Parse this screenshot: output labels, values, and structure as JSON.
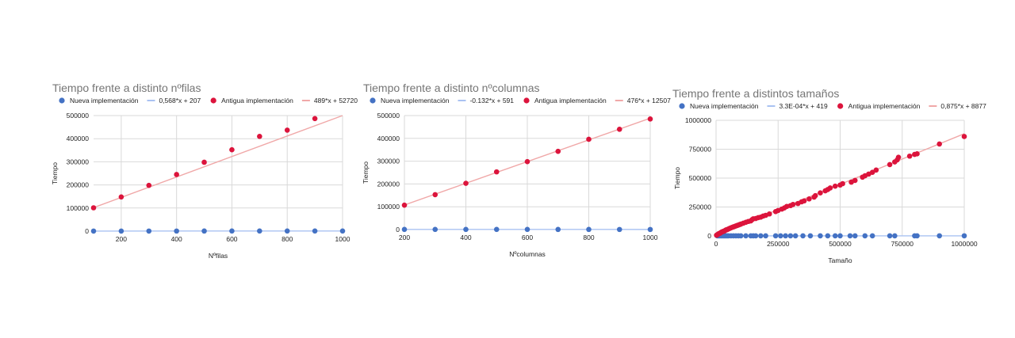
{
  "colors": {
    "nueva": "#4472C4",
    "antigua": "#DC143C",
    "nueva_trend": "#A9C2F2",
    "antigua_trend": "#F0A8A8",
    "grid": "#D9D9D9",
    "title": "#757575"
  },
  "chart_data": [
    {
      "type": "scatter",
      "title": "Tiempo frente a distinto nºfilas",
      "xlabel": "Nºfilas",
      "ylabel": "Tiempo",
      "xlim": [
        100,
        1000
      ],
      "ylim": [
        0,
        500000
      ],
      "xticks": [
        200,
        400,
        600,
        800,
        1000
      ],
      "yticks": [
        0,
        100000,
        200000,
        300000,
        400000,
        500000
      ],
      "ytick_labels": [
        "0",
        "100000",
        "200000",
        "300000",
        "400000",
        "500000"
      ],
      "grid": true,
      "legend_position": "top",
      "legend": [
        "Nueva implementación",
        "0,568*x + 207",
        "Antigua implementación",
        "489*x + 52720"
      ],
      "series": [
        {
          "name": "Nueva implementación",
          "kind": "points",
          "color_key": "nueva",
          "x": [
            100,
            200,
            300,
            400,
            500,
            600,
            700,
            800,
            900,
            1000
          ],
          "y": [
            260,
            320,
            380,
            430,
            490,
            550,
            610,
            660,
            720,
            780
          ]
        },
        {
          "name": "0,568*x + 207",
          "kind": "trendline",
          "color_key": "nueva_trend",
          "slope": 0.568,
          "intercept": 207
        },
        {
          "name": "Antigua implementación",
          "kind": "points",
          "color_key": "antigua",
          "x": [
            100,
            200,
            300,
            400,
            500,
            600,
            700,
            800,
            900
          ],
          "y": [
            101000,
            148000,
            198000,
            245000,
            298000,
            352000,
            410000,
            437000,
            487000
          ]
        },
        {
          "name": "489*x + 52720",
          "kind": "trendline",
          "color_key": "antigua_trend",
          "slope": 489,
          "intercept": 52720
        }
      ]
    },
    {
      "type": "scatter",
      "title": "Tiempo frente a distinto nºcolumnas",
      "xlabel": "Nºcolumnas",
      "ylabel": "Tiempo",
      "xlim": [
        200,
        1000
      ],
      "ylim": [
        0,
        500000
      ],
      "xticks": [
        200,
        400,
        600,
        800,
        1000
      ],
      "yticks": [
        0,
        100000,
        200000,
        300000,
        400000,
        500000
      ],
      "ytick_labels": [
        "0",
        "100000",
        "200000",
        "300000",
        "400000",
        "500000"
      ],
      "grid": true,
      "legend_position": "top",
      "legend": [
        "Nueva implementación",
        "-0.132*x + 591",
        "Antigua implementación",
        "476*x + 12507"
      ],
      "series": [
        {
          "name": "Nueva implementación",
          "kind": "points",
          "color_key": "nueva",
          "x": [
            200,
            300,
            400,
            500,
            600,
            700,
            800,
            900,
            1000
          ],
          "y": [
            560,
            550,
            540,
            525,
            510,
            500,
            485,
            470,
            460
          ]
        },
        {
          "name": "-0.132*x + 591",
          "kind": "trendline",
          "color_key": "nueva_trend",
          "slope": -0.132,
          "intercept": 591
        },
        {
          "name": "Antigua implementación",
          "kind": "points",
          "color_key": "antigua",
          "x": [
            200,
            300,
            400,
            500,
            600,
            700,
            800,
            900,
            1000
          ],
          "y": [
            107000,
            153000,
            203000,
            253000,
            298000,
            343000,
            396000,
            440000,
            485000
          ]
        },
        {
          "name": "476*x + 12507",
          "kind": "trendline",
          "color_key": "antigua_trend",
          "slope": 476,
          "intercept": 12507
        }
      ]
    },
    {
      "type": "scatter",
      "title": "Tiempo frente a distintos tamaños",
      "xlabel": "Tamaño",
      "ylabel": "Tiempo",
      "xlim": [
        0,
        1000000
      ],
      "ylim": [
        0,
        1000000
      ],
      "xticks": [
        0,
        250000,
        500000,
        750000,
        1000000
      ],
      "yticks": [
        0,
        250000,
        500000,
        750000,
        1000000
      ],
      "ytick_labels": [
        "0",
        "250000",
        "500000",
        "750000",
        "1000000"
      ],
      "grid": true,
      "legend_position": "top",
      "legend": [
        "Nueva implementación",
        "3.3E-04*x + 419",
        "Antigua implementación",
        "0,875*x + 8877"
      ],
      "series": [
        {
          "name": "Nueva implementación",
          "kind": "points",
          "color_key": "nueva",
          "x": [
            5000,
            10000,
            15000,
            20000,
            25000,
            30000,
            35000,
            40000,
            45000,
            50000,
            60000,
            70000,
            80000,
            90000,
            100000,
            120000,
            140000,
            150000,
            160000,
            180000,
            200000,
            240000,
            260000,
            280000,
            300000,
            320000,
            350000,
            380000,
            420000,
            450000,
            480000,
            500000,
            540000,
            560000,
            600000,
            630000,
            700000,
            720000,
            800000,
            810000,
            900000,
            1000000
          ],
          "y": [
            420,
            422,
            424,
            426,
            428,
            430,
            431,
            432,
            434,
            436,
            439,
            442,
            445,
            449,
            452,
            459,
            465,
            469,
            472,
            478,
            485,
            498,
            505,
            511,
            518,
            525,
            535,
            544,
            558,
            568,
            577,
            584,
            597,
            604,
            617,
            627,
            650,
            657,
            683,
            686,
            716,
            749
          ]
        },
        {
          "name": "3.3E-04*x + 419",
          "kind": "trendline",
          "color_key": "nueva_trend",
          "slope": 0.00033,
          "intercept": 419
        },
        {
          "name": "Antigua implementación",
          "kind": "points",
          "color_key": "antigua",
          "x": [
            2000,
            5000,
            8000,
            10000,
            12000,
            15000,
            18000,
            20000,
            22000,
            25000,
            28000,
            30000,
            33000,
            36000,
            40000,
            44000,
            48000,
            52000,
            56000,
            60000,
            65000,
            70000,
            75000,
            80000,
            85000,
            90000,
            95000,
            100000,
            110000,
            120000,
            130000,
            140000,
            145000,
            150000,
            160000,
            170000,
            180000,
            190000,
            200000,
            215000,
            240000,
            250000,
            265000,
            275000,
            285000,
            300000,
            310000,
            330000,
            345000,
            355000,
            375000,
            395000,
            400000,
            420000,
            440000,
            450000,
            460000,
            480000,
            500000,
            510000,
            545000,
            560000,
            590000,
            600000,
            615000,
            630000,
            645000,
            700000,
            720000,
            730000,
            735000,
            780000,
            800000,
            810000,
            900000,
            1000000
          ],
          "y": [
            6000,
            10000,
            14000,
            18000,
            20000,
            22000,
            26000,
            30000,
            32000,
            36000,
            38000,
            40000,
            42000,
            46000,
            52000,
            54000,
            58000,
            62000,
            66000,
            70000,
            74000,
            78000,
            82000,
            86000,
            90000,
            94000,
            98000,
            102000,
            110000,
            118000,
            125000,
            130000,
            140000,
            148000,
            150000,
            158000,
            162000,
            172000,
            178000,
            190000,
            210000,
            220000,
            232000,
            242000,
            255000,
            262000,
            272000,
            280000,
            295000,
            303000,
            320000,
            335000,
            348000,
            372000,
            390000,
            401000,
            415000,
            430000,
            440000,
            452000,
            465000,
            480000,
            508000,
            520000,
            535000,
            550000,
            570000,
            617000,
            640000,
            658000,
            680000,
            690000,
            705000,
            710000,
            795000,
            860000
          ]
        },
        {
          "name": "0,875*x + 8877",
          "kind": "trendline",
          "color_key": "antigua_trend",
          "slope": 0.875,
          "intercept": 8877
        }
      ]
    }
  ]
}
